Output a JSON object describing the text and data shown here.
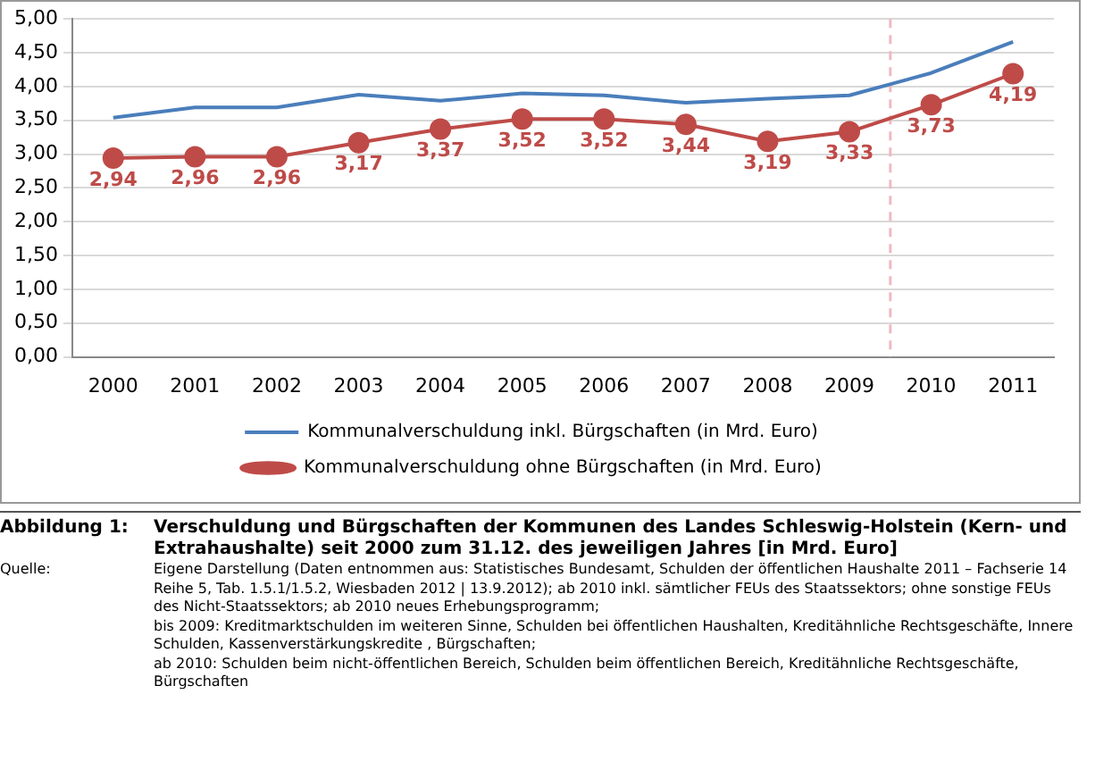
{
  "chart_data": {
    "type": "line",
    "title": "Verschuldung und Bürgschaften der Kommunen des Landes Schleswig-Holstein (Kern- und Extrahaushalte) seit 2000 zum 31.12. des jeweiligen Jahres [in Mrd. Euro]",
    "annotations": [
      "Abbildung 1:",
      "Quelle:",
      "Eigene Darstellung (Daten entnommen aus: Statistisches Bundesamt, Schulden der öffentlichen Haushalte 2011 – Fachserie 14 Reihe 5, Tab. 1.5.1/1.5.2,  Wiesbaden 2012 | 13.9.2012);  ab 2010 inkl. sämtlicher FEUs des Staatssektors; ohne sonstige FEUs des Nicht-Staatssektors; ab 2010 neues Erhebungsprogramm;\nbis 2009: Kreditmarktschulden im weiteren Sinne, Schulden bei öffentlichen Haushalten, Kreditähnliche Rechtsgeschäfte, Innere Schulden, Kassenverstärkungskredite , Bürgschaften;\nab 2010: Schulden beim nicht-öffentlichen Bereich, Schulden beim öffentlichen Bereich, Kreditähnliche Rechtsgeschäfte, Bürgschaften"
    ],
    "categories": [
      "2000",
      "2001",
      "2002",
      "2003",
      "2004",
      "2005",
      "2006",
      "2007",
      "2008",
      "2009",
      "2010",
      "2011"
    ],
    "series": [
      {
        "name": "Kommunalverschuldung inkl. Bürgschaften (in Mrd. Euro)",
        "color": "#4a7ebb",
        "marker": "none",
        "values": [
          3.54,
          3.69,
          3.69,
          3.88,
          3.79,
          3.9,
          3.87,
          3.76,
          3.82,
          3.87,
          4.2,
          4.66
        ]
      },
      {
        "name": "Kommunalverschuldung ohne Bürgschaften (in Mrd. Euro)",
        "color": "#be4b48",
        "marker": "circle",
        "values": [
          2.94,
          2.96,
          2.96,
          3.17,
          3.37,
          3.52,
          3.52,
          3.44,
          3.19,
          3.33,
          3.73,
          4.19
        ],
        "value_labels": [
          "2,94",
          "2,96",
          "2,96",
          "3,17",
          "3,37",
          "3,52",
          "3,52",
          "3,44",
          "3,19",
          "3,33",
          "3,73",
          "4,19"
        ]
      }
    ],
    "ylim": [
      0,
      5
    ],
    "yticks": [
      {
        "value": 0,
        "label": "0,00"
      },
      {
        "value": 0.5,
        "label": "0,50"
      },
      {
        "value": 1,
        "label": "1,00"
      },
      {
        "value": 1.5,
        "label": "1,50"
      },
      {
        "value": 2,
        "label": "2,00"
      },
      {
        "value": 2.5,
        "label": "2,50"
      },
      {
        "value": 3,
        "label": "3,00"
      },
      {
        "value": 3.5,
        "label": "3,50"
      },
      {
        "value": 4,
        "label": "4,00"
      },
      {
        "value": 4.5,
        "label": "4,50"
      },
      {
        "value": 5,
        "label": "5,00"
      }
    ],
    "grid": "y",
    "legend": "bottom",
    "ref_lines": [
      {
        "axis": "x",
        "value": "2010",
        "color": "#f2b8c0",
        "line_style": "dashed"
      }
    ]
  }
}
